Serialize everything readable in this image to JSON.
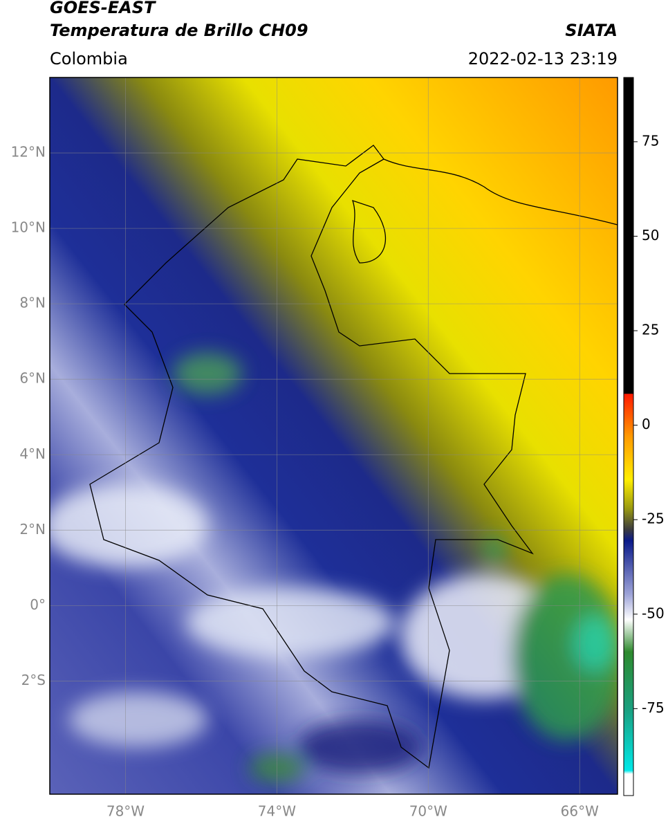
{
  "header": {
    "title": "GOES-EAST",
    "subtitle": "Temperatura de Brillo CH09",
    "source": "SIATA",
    "region": "Colombia",
    "timestamp": "2022-02-13 23:19"
  },
  "map": {
    "lat_lim": [
      -5,
      14
    ],
    "lon_lim": [
      -80,
      -65
    ],
    "grid": true,
    "lat_ticks": [
      {
        "value": 12,
        "label": "12°N"
      },
      {
        "value": 10,
        "label": "10°N"
      },
      {
        "value": 8,
        "label": "8°N"
      },
      {
        "value": 6,
        "label": "6°N"
      },
      {
        "value": 4,
        "label": "4°N"
      },
      {
        "value": 2,
        "label": "2°N"
      },
      {
        "value": 0,
        "label": "0°"
      },
      {
        "value": -2,
        "label": "2°S"
      }
    ],
    "lon_ticks": [
      {
        "value": -78,
        "label": "78°W"
      },
      {
        "value": -74,
        "label": "74°W"
      },
      {
        "value": -70,
        "label": "70°W"
      },
      {
        "value": -66,
        "label": "66°W"
      }
    ]
  },
  "colorbar": {
    "lim": [
      -98,
      92
    ],
    "ticks": [
      75,
      50,
      25,
      0,
      -25,
      -50,
      -75
    ]
  }
}
